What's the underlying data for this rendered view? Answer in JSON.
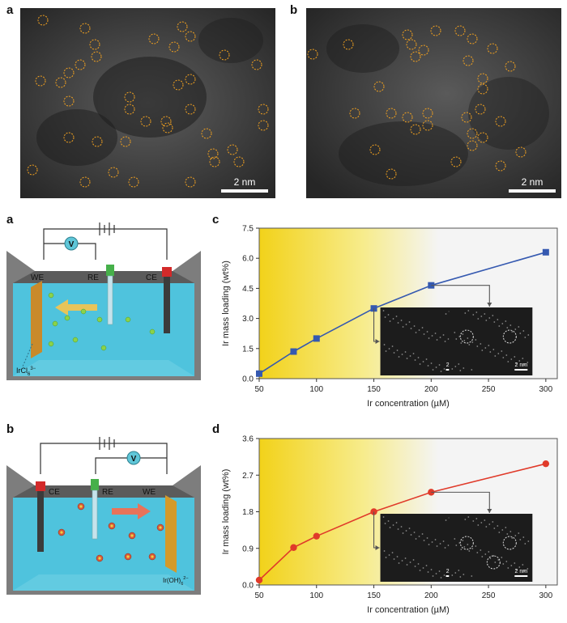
{
  "top_panels": {
    "a": {
      "label": "a",
      "scalebar": "2 nm"
    },
    "b": {
      "label": "b",
      "scalebar": "2 nm"
    }
  },
  "schematic_a": {
    "label": "a",
    "electrodes": [
      "WE",
      "RE",
      "CE"
    ],
    "meter": "V",
    "species": "IrCl",
    "species_sub": "6",
    "species_sup": "3−"
  },
  "schematic_b": {
    "label": "b",
    "electrodes": [
      "CE",
      "RE",
      "WE"
    ],
    "meter": "V",
    "species": "Ir(OH)",
    "species_sub": "6",
    "species_sup": "2−"
  },
  "chart_data": [
    {
      "panel": "c",
      "type": "line",
      "xlabel": "Ir concentration (µM)",
      "ylabel": "Ir mass loading (wt%)",
      "x": [
        50,
        80,
        100,
        150,
        200,
        300
      ],
      "y": [
        0.25,
        1.35,
        2.0,
        3.5,
        4.65,
        6.3
      ],
      "xticks": [
        50,
        100,
        150,
        200,
        250,
        300
      ],
      "yticks": [
        0.0,
        1.5,
        3.0,
        4.5,
        6.0,
        7.5
      ],
      "xlim": [
        50,
        310
      ],
      "ylim": [
        0,
        7.5
      ],
      "color": "#3559b0",
      "marker": "square",
      "inset_scalebar": "2 nm"
    },
    {
      "panel": "d",
      "type": "line",
      "xlabel": "Ir concentration (µM)",
      "ylabel": "Ir mass loading (wt%)",
      "x": [
        50,
        80,
        100,
        150,
        200,
        300
      ],
      "y": [
        0.12,
        0.92,
        1.2,
        1.8,
        2.28,
        2.98
      ],
      "xticks": [
        50,
        100,
        150,
        200,
        250,
        300
      ],
      "yticks": [
        0.0,
        0.9,
        1.8,
        2.7,
        3.6
      ],
      "xlim": [
        50,
        310
      ],
      "ylim": [
        0,
        3.6
      ],
      "color": "#e03a2a",
      "marker": "circle",
      "inset_scalebar": "2 nm"
    }
  ]
}
